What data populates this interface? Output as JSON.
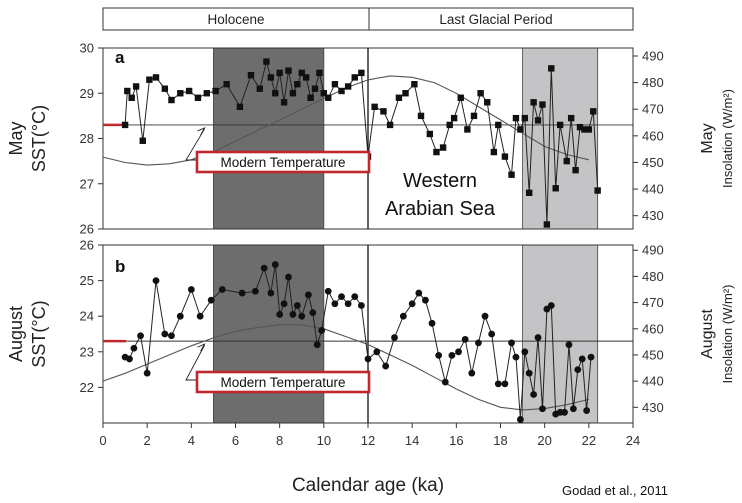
{
  "header_bar": {
    "holocene_label": "Holocene",
    "glacial_label": "Last Glacial Period"
  },
  "annotations": {
    "region": [
      "Western",
      "Arabian Sea"
    ],
    "modern_callout": "Modern Temperature",
    "credit": "Godad et al., 2011"
  },
  "chart_data": [
    {
      "type": "line",
      "panel": "a",
      "x_label": "Calendar age (ka)",
      "xlim": [
        0,
        24
      ],
      "x_ticks": [
        0,
        2,
        4,
        6,
        8,
        10,
        12,
        14,
        16,
        18,
        20,
        22,
        24
      ],
      "y_label_lines": [
        "May",
        "SST(°C)"
      ],
      "ylim": [
        26,
        30
      ],
      "y_ticks": [
        26,
        27,
        28,
        29,
        30
      ],
      "y2_label_lines": [
        "May",
        "Insolation (W/m²)"
      ],
      "y2lim": [
        425,
        493
      ],
      "y2_ticks": [
        430,
        440,
        450,
        460,
        470,
        480,
        490
      ],
      "shaded_intervals": [
        {
          "x": [
            5,
            10
          ],
          "color": "#6d6d6d"
        },
        {
          "x": [
            19,
            22.4
          ],
          "color": "#c4c4c6"
        }
      ],
      "boundary_line_x": 12,
      "modern_temperature": 28.3,
      "modern_marker_color": "#c0282d",
      "callout_color": "#c0282d",
      "series": [
        {
          "marker": "square",
          "x": [
            1.0,
            1.1,
            1.3,
            1.5,
            1.8,
            2.1,
            2.4,
            2.8,
            3.1,
            3.5,
            3.9,
            4.3,
            4.7,
            5.1,
            5.6,
            6.2,
            6.7,
            7.1,
            7.4,
            7.6,
            7.8,
            8.0,
            8.2,
            8.4,
            8.6,
            8.8,
            9.0,
            9.2,
            9.4,
            9.6,
            9.8,
            10.0,
            10.2,
            10.5,
            10.8,
            11.1,
            11.4,
            11.7,
            12.0,
            12.3,
            12.7,
            13.0,
            13.4,
            13.7,
            14.1,
            14.4,
            14.8,
            15.1,
            15.4,
            15.7,
            15.9,
            16.2,
            16.5,
            16.8,
            17.1,
            17.4,
            17.7,
            17.9,
            18.2,
            18.5,
            18.7,
            18.9,
            19.1,
            19.3,
            19.5,
            19.7,
            19.9,
            20.1,
            20.3,
            20.5,
            20.7,
            21.0,
            21.2,
            21.4,
            21.6,
            21.8,
            22.0,
            22.2,
            22.4
          ],
          "y": [
            28.3,
            29.05,
            28.9,
            29.15,
            27.95,
            29.3,
            29.35,
            29.1,
            28.85,
            29.0,
            29.05,
            28.9,
            29.0,
            29.05,
            29.2,
            28.7,
            29.4,
            29.1,
            29.7,
            29.35,
            29.0,
            29.45,
            28.8,
            29.5,
            29.0,
            29.2,
            29.45,
            29.35,
            28.9,
            29.1,
            29.45,
            29.0,
            28.9,
            29.2,
            29.05,
            29.15,
            29.35,
            29.45,
            27.6,
            28.7,
            28.6,
            28.3,
            28.9,
            29.0,
            29.2,
            28.5,
            28.1,
            27.7,
            27.8,
            28.3,
            28.45,
            28.9,
            28.2,
            28.5,
            29.0,
            28.8,
            27.7,
            28.3,
            27.6,
            27.2,
            28.45,
            28.2,
            28.45,
            26.8,
            28.8,
            28.4,
            28.75,
            26.1,
            29.55,
            26.9,
            28.3,
            27.5,
            28.45,
            27.3,
            28.25,
            28.2,
            28.2,
            28.6,
            26.85
          ]
        },
        {
          "name": "insolation",
          "axis": "y2",
          "x": [
            0,
            1,
            2,
            3,
            4,
            5,
            6,
            7,
            8,
            9,
            10,
            11,
            12,
            13,
            14,
            15,
            16,
            17,
            18,
            19,
            20,
            21,
            22
          ],
          "y": [
            452,
            450,
            449,
            449.5,
            451,
            454,
            458,
            462,
            466,
            470,
            474,
            478,
            481,
            482.5,
            482,
            480,
            476,
            471,
            466,
            461,
            456,
            453,
            451
          ]
        }
      ]
    },
    {
      "type": "line",
      "panel": "b",
      "x_label": "Calendar age (ka)",
      "xlim": [
        0,
        24
      ],
      "x_ticks": [
        0,
        2,
        4,
        6,
        8,
        10,
        12,
        14,
        16,
        18,
        20,
        22,
        24
      ],
      "y_label_lines": [
        "August",
        "SST(°C)"
      ],
      "ylim": [
        21,
        26
      ],
      "y_ticks": [
        22,
        23,
        24,
        25,
        26
      ],
      "y2_label_lines": [
        "August",
        "Insolation (W/m²)"
      ],
      "y2lim": [
        424,
        492
      ],
      "y2_ticks": [
        430,
        440,
        450,
        460,
        470,
        480,
        490
      ],
      "shaded_intervals": [
        {
          "x": [
            5,
            10
          ],
          "color": "#6d6d6d"
        },
        {
          "x": [
            19,
            22.4
          ],
          "color": "#c4c4c6"
        }
      ],
      "boundary_line_x": 12,
      "modern_temperature": 23.3,
      "modern_marker_color": "#c0282d",
      "callout_color": "#c0282d",
      "series": [
        {
          "marker": "circle",
          "x": [
            1.0,
            1.2,
            1.4,
            1.7,
            2.0,
            2.4,
            2.8,
            3.1,
            3.5,
            4.0,
            4.4,
            4.9,
            5.4,
            6.3,
            6.9,
            7.3,
            7.6,
            7.8,
            8.0,
            8.2,
            8.4,
            8.6,
            8.8,
            9.0,
            9.3,
            9.5,
            9.7,
            9.9,
            10.2,
            10.5,
            10.8,
            11.1,
            11.4,
            11.7,
            12.0,
            12.4,
            12.8,
            13.2,
            13.6,
            14.0,
            14.3,
            14.6,
            14.9,
            15.2,
            15.5,
            15.8,
            16.1,
            16.4,
            16.7,
            17.0,
            17.3,
            17.6,
            17.9,
            18.2,
            18.5,
            18.7,
            18.9,
            19.1,
            19.3,
            19.5,
            19.7,
            19.9,
            20.1,
            20.3,
            20.5,
            20.7,
            20.9,
            21.1,
            21.3,
            21.5,
            21.7,
            21.9,
            22.1
          ],
          "y": [
            22.85,
            22.8,
            23.1,
            23.45,
            22.4,
            25.0,
            23.5,
            23.45,
            24.0,
            24.75,
            24.0,
            24.45,
            24.75,
            24.65,
            24.7,
            25.35,
            24.65,
            25.45,
            24.05,
            24.35,
            25.1,
            24.05,
            24.3,
            24.0,
            24.6,
            24.1,
            23.2,
            23.6,
            24.7,
            24.35,
            24.55,
            24.35,
            24.55,
            24.3,
            22.8,
            23.0,
            22.6,
            23.4,
            24.0,
            24.35,
            24.65,
            24.45,
            23.8,
            22.9,
            22.15,
            22.9,
            23.0,
            23.35,
            22.4,
            23.25,
            24.0,
            23.5,
            22.1,
            22.1,
            23.25,
            22.85,
            21.1,
            23.0,
            22.4,
            21.8,
            23.4,
            21.4,
            24.2,
            24.3,
            21.25,
            21.3,
            21.3,
            23.2,
            21.4,
            22.5,
            22.8,
            21.35,
            22.85
          ]
        },
        {
          "name": "insolation",
          "axis": "y2",
          "x": [
            0,
            1,
            2,
            3,
            4,
            5,
            6,
            7,
            8,
            9,
            10,
            11,
            12,
            13,
            14,
            15,
            16,
            17,
            18,
            19,
            20,
            21,
            22
          ],
          "y": [
            440,
            443,
            446.5,
            450,
            453.5,
            456.5,
            459,
            460.5,
            461.5,
            461.5,
            460,
            457,
            454,
            450,
            446,
            441.5,
            437,
            433,
            430,
            429,
            429.5,
            431,
            433
          ]
        }
      ]
    }
  ]
}
